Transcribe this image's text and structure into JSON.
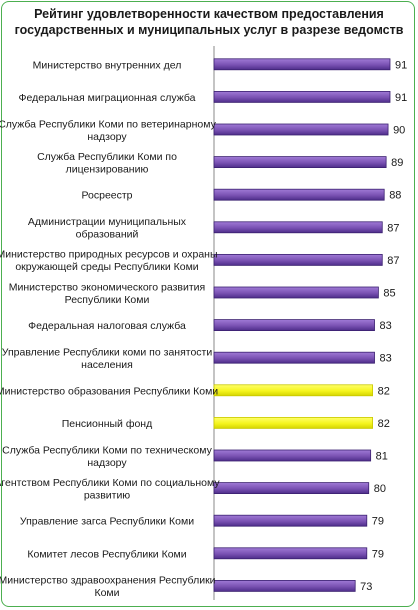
{
  "chart_data": {
    "type": "bar",
    "orientation": "horizontal",
    "title_line1": "Рейтинг удовлетворенности качеством предоставления",
    "title_line2": "государственных и муниципальных услуг в разрезе ведомств",
    "categories": [
      [
        "Министерство внутренних дел"
      ],
      [
        "Федеральная миграционная служба"
      ],
      [
        "Служба Республики Коми по ветеринарному",
        "надзору"
      ],
      [
        "Служба Республики Коми по",
        "лицензированию"
      ],
      [
        "Росреестр"
      ],
      [
        "Администрации муниципальных",
        "образований"
      ],
      [
        "Министерство природных ресурсов и охраны",
        "окружающей среды Республики Коми"
      ],
      [
        "Министерство экономического развития",
        "Республики Коми"
      ],
      [
        "Федеральная налоговая служба"
      ],
      [
        "Управление Республики коми по занятости",
        "населения"
      ],
      [
        "Министерство образования Республики Коми"
      ],
      [
        "Пенсионный фонд"
      ],
      [
        "Служба Республики Коми по техническому",
        "надзору"
      ],
      [
        "Агентством Республики Коми по социальному",
        "развитию"
      ],
      [
        "Управление загса Республики Коми"
      ],
      [
        "Комитет лесов Республики Коми"
      ],
      [
        "Министерство здравоохранения Республики",
        "Коми"
      ]
    ],
    "values": [
      91,
      91,
      90,
      89,
      88,
      87,
      87,
      85,
      83,
      83,
      82,
      82,
      81,
      80,
      79,
      79,
      73
    ],
    "highlighted": [
      false,
      false,
      false,
      false,
      false,
      false,
      false,
      false,
      false,
      false,
      true,
      true,
      false,
      false,
      false,
      false,
      false
    ],
    "xlim": [
      0,
      91
    ],
    "colors": {
      "bar": "#7a52b3",
      "bar_dark": "#3b2170",
      "highlight": "#f5f51e",
      "highlight_dark": "#c8c800",
      "border": "#4caf50"
    }
  }
}
